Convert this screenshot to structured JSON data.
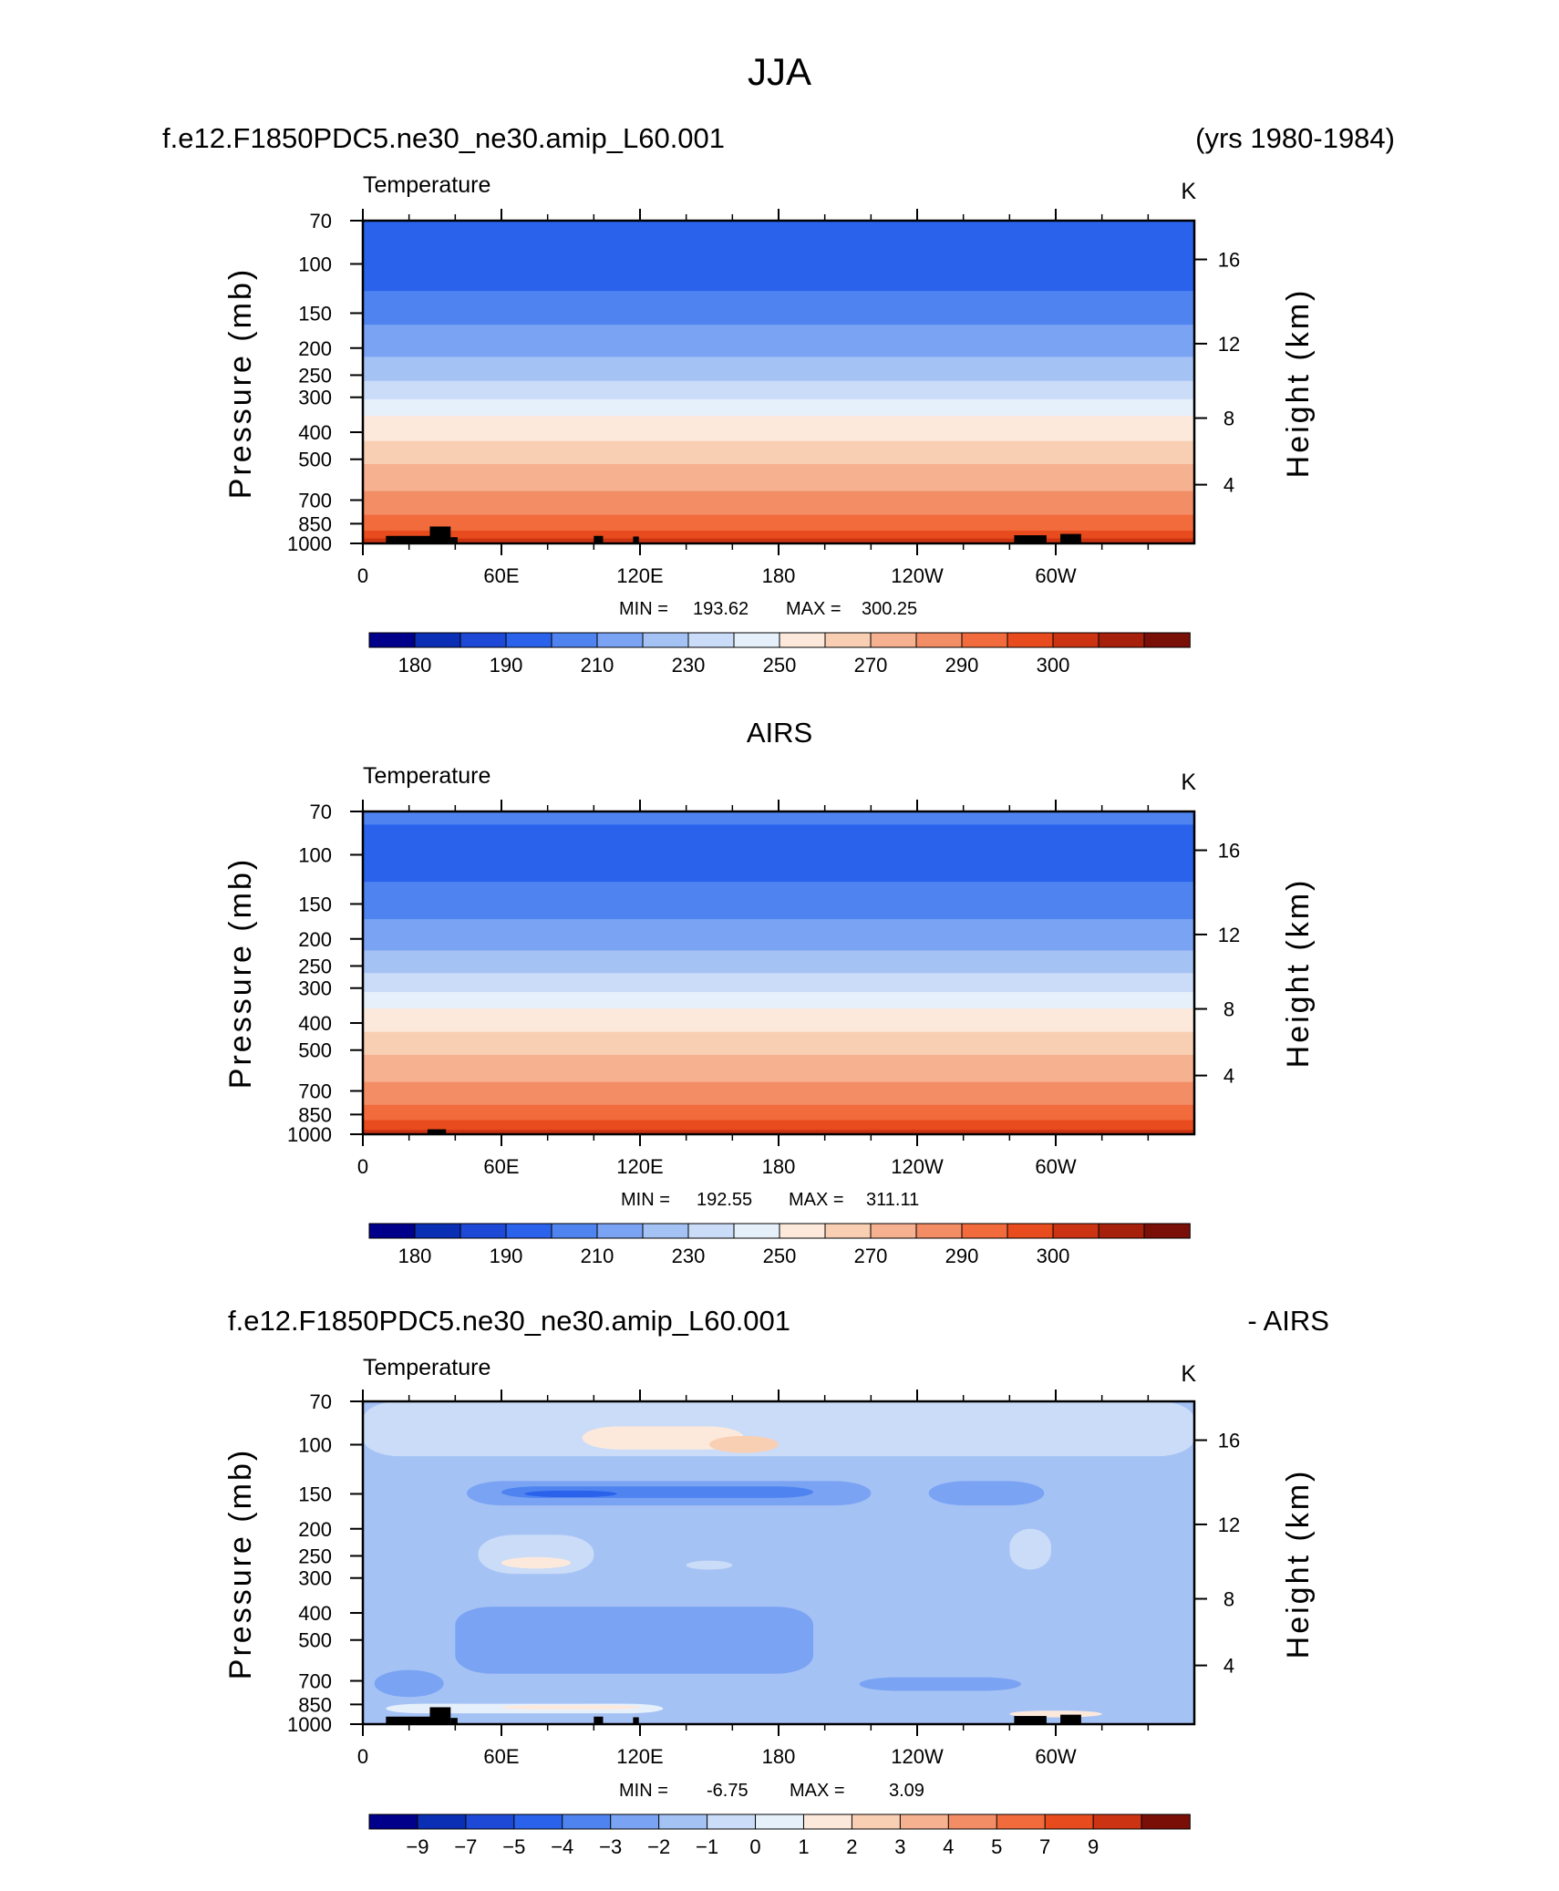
{
  "main_title": "JJA",
  "colors": {
    "temperature_levels": [
      "#00008b",
      "#0a2fb4",
      "#1e49d6",
      "#2a62ec",
      "#4f84f0",
      "#7aa3f3",
      "#a5c2f5",
      "#cadcf7",
      "#e6f0fb",
      "#fde9dc",
      "#f9cfb4",
      "#f6b190",
      "#f38d66",
      "#f16b3c",
      "#e84c1e",
      "#cc3312",
      "#a6200b",
      "#7a0f08"
    ],
    "difference_levels": [
      "#00008b",
      "#0a2fb4",
      "#1e49d6",
      "#2a62ec",
      "#4f84f0",
      "#7aa3f3",
      "#a5c2f5",
      "#cadcf7",
      "#e6f0fb",
      "#fde9dc",
      "#f9cfb4",
      "#f6b190",
      "#f38d66",
      "#f16b3c",
      "#e84c1e",
      "#cc3312",
      "#7a0f08"
    ],
    "land_mask": "#000000"
  },
  "chart_data": [
    {
      "type": "heatmap",
      "header_left": "f.e12.F1850PDC5.ne30_ne30.amip_L60.001",
      "header_right": "(yrs 1980-1984)",
      "variable": "Temperature",
      "units": "K",
      "xlabel": "",
      "ylabel": "Pressure (mb)",
      "ylabel_right": "Height (km)",
      "x_ticks": [
        "0",
        "60E",
        "120E",
        "180",
        "120W",
        "60W"
      ],
      "y_ticks": [
        70,
        100,
        150,
        200,
        250,
        300,
        400,
        500,
        700,
        850,
        1000
      ],
      "height_ticks": [
        4,
        8,
        12,
        16
      ],
      "ylim": [
        1000,
        70
      ],
      "min_label": "MIN =",
      "min": "193.62",
      "max_label": "MAX =",
      "max": "300.25",
      "colorbar_labels": [
        "180",
        "190",
        "210",
        "230",
        "250",
        "270",
        "290",
        "300"
      ],
      "bands": [
        {
          "p": 70,
          "level": 3
        },
        {
          "p": 125,
          "level": 4
        },
        {
          "p": 165,
          "level": 5
        },
        {
          "p": 215,
          "level": 6
        },
        {
          "p": 262,
          "level": 7
        },
        {
          "p": 305,
          "level": 8
        },
        {
          "p": 350,
          "level": 9
        },
        {
          "p": 430,
          "level": 10
        },
        {
          "p": 520,
          "level": 11
        },
        {
          "p": 650,
          "level": 12
        },
        {
          "p": 790,
          "level": 13
        },
        {
          "p": 900,
          "level": 14
        },
        {
          "p": 960,
          "level": 15
        }
      ]
    },
    {
      "type": "heatmap",
      "header_center": "AIRS",
      "variable": "Temperature",
      "units": "K",
      "xlabel": "",
      "ylabel": "Pressure (mb)",
      "ylabel_right": "Height (km)",
      "x_ticks": [
        "0",
        "60E",
        "120E",
        "180",
        "120W",
        "60W"
      ],
      "y_ticks": [
        70,
        100,
        150,
        200,
        250,
        300,
        400,
        500,
        700,
        850,
        1000
      ],
      "height_ticks": [
        4,
        8,
        12,
        16
      ],
      "ylim": [
        1000,
        70
      ],
      "min_label": "MIN =",
      "min": "192.55",
      "max_label": "MAX =",
      "max": "311.11",
      "colorbar_labels": [
        "180",
        "190",
        "210",
        "230",
        "250",
        "270",
        "290",
        "300"
      ],
      "bands": [
        {
          "p": 70,
          "level": 4
        },
        {
          "p": 78,
          "level": 3
        },
        {
          "p": 125,
          "level": 4
        },
        {
          "p": 170,
          "level": 5
        },
        {
          "p": 220,
          "level": 6
        },
        {
          "p": 265,
          "level": 7
        },
        {
          "p": 310,
          "level": 8
        },
        {
          "p": 355,
          "level": 9
        },
        {
          "p": 430,
          "level": 10
        },
        {
          "p": 520,
          "level": 11
        },
        {
          "p": 650,
          "level": 12
        },
        {
          "p": 785,
          "level": 13
        },
        {
          "p": 890,
          "level": 14
        },
        {
          "p": 965,
          "level": 15
        }
      ]
    },
    {
      "type": "heatmap",
      "header_left": "f.e12.F1850PDC5.ne30_ne30.amip_L60.001",
      "header_right": "- AIRS",
      "variable": "Temperature",
      "units": "K",
      "xlabel": "",
      "ylabel": "Pressure (mb)",
      "ylabel_right": "Height (km)",
      "x_ticks": [
        "0",
        "60E",
        "120E",
        "180",
        "120W",
        "60W"
      ],
      "y_ticks": [
        70,
        100,
        150,
        200,
        250,
        300,
        400,
        500,
        700,
        850,
        1000
      ],
      "height_ticks": [
        4,
        8,
        12,
        16
      ],
      "ylim": [
        1000,
        70
      ],
      "min_label": "MIN =",
      "min": "-6.75",
      "max_label": "MAX =",
      "max": "3.09",
      "colorbar_labels": [
        "−9",
        "−7",
        "−5",
        "−4",
        "−3",
        "−2",
        "−1",
        "0",
        "1",
        "2",
        "3",
        "4",
        "5",
        "7",
        "9"
      ],
      "background_level": 6,
      "blobs": [
        {
          "lon": 0,
          "lon_w": 360,
          "p": 80,
          "p_w": 60,
          "level": 7
        },
        {
          "lon": 95,
          "lon_w": 70,
          "p": 95,
          "p_w": 18,
          "level": 9
        },
        {
          "lon": 150,
          "lon_w": 30,
          "p": 100,
          "p_w": 14,
          "level": 10
        },
        {
          "lon": 45,
          "lon_w": 175,
          "p": 150,
          "p_w": 30,
          "level": 5
        },
        {
          "lon": 245,
          "lon_w": 50,
          "p": 150,
          "p_w": 30,
          "level": 5
        },
        {
          "lon": 60,
          "lon_w": 135,
          "p": 148,
          "p_w": 14,
          "level": 4
        },
        {
          "lon": 70,
          "lon_w": 40,
          "p": 150,
          "p_w": 8,
          "level": 3
        },
        {
          "lon": 50,
          "lon_w": 50,
          "p": 250,
          "p_w": 80,
          "level": 7
        },
        {
          "lon": 60,
          "lon_w": 30,
          "p": 265,
          "p_w": 25,
          "level": 9
        },
        {
          "lon": 140,
          "lon_w": 20,
          "p": 270,
          "p_w": 20,
          "level": 7
        },
        {
          "lon": 280,
          "lon_w": 18,
          "p": 240,
          "p_w": 80,
          "level": 7
        },
        {
          "lon": 40,
          "lon_w": 155,
          "p": 520,
          "p_w": 280,
          "level": 5
        },
        {
          "lon": 5,
          "lon_w": 30,
          "p": 720,
          "p_w": 160,
          "level": 5
        },
        {
          "lon": 215,
          "lon_w": 70,
          "p": 720,
          "p_w": 80,
          "level": 5
        },
        {
          "lon": 10,
          "lon_w": 120,
          "p": 880,
          "p_w": 70,
          "level": 8
        },
        {
          "lon": 60,
          "lon_w": 60,
          "p": 870,
          "p_w": 30,
          "level": 9
        },
        {
          "lon": 280,
          "lon_w": 40,
          "p": 920,
          "p_w": 50,
          "level": 9
        }
      ]
    }
  ]
}
